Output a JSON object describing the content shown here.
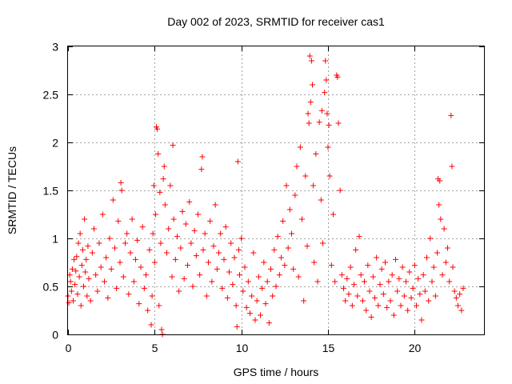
{
  "chart_data": {
    "type": "scatter",
    "title": "Day 002 of 2023, SRMTID for receiver cas1",
    "xlabel": "GPS time / hours",
    "ylabel": "SRMTID / TECUs",
    "xlim": [
      0,
      24
    ],
    "ylim": [
      0,
      3
    ],
    "xticks": [
      0,
      5,
      10,
      15,
      20
    ],
    "yticks": [
      0,
      0.5,
      1,
      1.5,
      2,
      2.5,
      3
    ],
    "xtick_labels": [
      "0",
      "5",
      "10",
      "15",
      "20"
    ],
    "ytick_labels": [
      "0",
      "0.5",
      "1",
      "1.5",
      "2",
      "2.5",
      "3"
    ],
    "grid": true,
    "marker": "+",
    "color": "#ff0000",
    "series": [
      {
        "name": "SRMTID",
        "points": [
          [
            0.0,
            0.4
          ],
          [
            0.05,
            0.33
          ],
          [
            0.1,
            0.62
          ],
          [
            0.15,
            0.55
          ],
          [
            0.2,
            0.45
          ],
          [
            0.25,
            0.68
          ],
          [
            0.3,
            0.35
          ],
          [
            0.35,
            0.78
          ],
          [
            0.4,
            0.52
          ],
          [
            0.45,
            0.66
          ],
          [
            0.5,
            0.81
          ],
          [
            0.55,
            0.42
          ],
          [
            0.6,
            0.95
          ],
          [
            0.65,
            0.6
          ],
          [
            0.7,
            1.05
          ],
          [
            0.75,
            0.3
          ],
          [
            0.8,
            0.72
          ],
          [
            0.85,
            0.88
          ],
          [
            0.9,
            0.5
          ],
          [
            0.95,
            1.2
          ],
          [
            1.0,
            0.65
          ],
          [
            1.05,
            0.78
          ],
          [
            1.1,
            0.4
          ],
          [
            1.15,
            0.92
          ],
          [
            1.2,
            0.58
          ],
          [
            1.3,
            0.35
          ],
          [
            1.4,
            0.85
          ],
          [
            1.5,
            1.1
          ],
          [
            1.6,
            0.62
          ],
          [
            1.7,
            0.45
          ],
          [
            1.8,
            0.95
          ],
          [
            1.9,
            0.7
          ],
          [
            2.0,
            1.25
          ],
          [
            2.1,
            0.55
          ],
          [
            2.2,
            0.8
          ],
          [
            2.3,
            0.38
          ],
          [
            2.4,
            1.0
          ],
          [
            2.5,
            0.68
          ],
          [
            2.6,
            1.4
          ],
          [
            2.7,
            0.9
          ],
          [
            2.8,
            0.48
          ],
          [
            2.9,
            1.18
          ],
          [
            3.0,
            0.75
          ],
          [
            3.05,
            1.58
          ],
          [
            3.1,
            1.5
          ],
          [
            3.2,
            0.6
          ],
          [
            3.3,
            0.95
          ],
          [
            3.4,
            1.05
          ],
          [
            3.5,
            0.42
          ],
          [
            3.6,
            0.85
          ],
          [
            3.7,
            1.2
          ],
          [
            3.8,
            0.55
          ],
          [
            3.9,
            0.78
          ],
          [
            4.0,
            0.98
          ],
          [
            4.1,
            0.32
          ],
          [
            4.2,
            0.7
          ],
          [
            4.3,
            1.12
          ],
          [
            4.4,
            0.48
          ],
          [
            4.5,
            0.62
          ],
          [
            4.6,
            0.25
          ],
          [
            4.7,
            0.88
          ],
          [
            4.8,
            0.1
          ],
          [
            4.85,
            0.4
          ],
          [
            4.9,
            1.05
          ],
          [
            4.95,
            1.55
          ],
          [
            5.0,
            0.75
          ],
          [
            5.05,
            1.25
          ],
          [
            5.1,
            2.16
          ],
          [
            5.15,
            2.14
          ],
          [
            5.2,
            1.88
          ],
          [
            5.25,
            0.3
          ],
          [
            5.3,
            1.48
          ],
          [
            5.35,
            0.95
          ],
          [
            5.4,
            0.05
          ],
          [
            5.45,
            0.0
          ],
          [
            5.5,
            1.62
          ],
          [
            5.55,
            1.75
          ],
          [
            5.6,
            1.35
          ],
          [
            5.7,
            0.85
          ],
          [
            5.8,
            1.1
          ],
          [
            5.9,
            1.55
          ],
          [
            6.0,
            0.6
          ],
          [
            6.05,
            1.97
          ],
          [
            6.1,
            1.2
          ],
          [
            6.2,
            0.78
          ],
          [
            6.3,
            1.02
          ],
          [
            6.4,
            0.45
          ],
          [
            6.5,
            0.9
          ],
          [
            6.6,
            1.28
          ],
          [
            6.7,
            0.58
          ],
          [
            6.8,
            1.15
          ],
          [
            6.9,
            0.72
          ],
          [
            7.0,
            1.38
          ],
          [
            7.1,
            0.95
          ],
          [
            7.2,
            0.5
          ],
          [
            7.3,
            1.08
          ],
          [
            7.4,
            0.82
          ],
          [
            7.5,
            1.25
          ],
          [
            7.6,
            0.62
          ],
          [
            7.7,
            1.72
          ],
          [
            7.75,
            1.85
          ],
          [
            7.8,
            0.88
          ],
          [
            7.9,
            1.05
          ],
          [
            8.0,
            0.4
          ],
          [
            8.1,
            0.75
          ],
          [
            8.2,
            1.18
          ],
          [
            8.3,
            0.55
          ],
          [
            8.4,
            0.92
          ],
          [
            8.5,
            1.35
          ],
          [
            8.6,
            0.68
          ],
          [
            8.7,
            0.85
          ],
          [
            8.8,
            1.05
          ],
          [
            8.9,
            0.48
          ],
          [
            9.0,
            0.78
          ],
          [
            9.1,
            1.12
          ],
          [
            9.2,
            0.38
          ],
          [
            9.3,
            0.65
          ],
          [
            9.4,
            0.95
          ],
          [
            9.5,
            0.52
          ],
          [
            9.6,
            0.8
          ],
          [
            9.7,
            0.3
          ],
          [
            9.75,
            0.08
          ],
          [
            9.8,
            1.8
          ],
          [
            9.85,
            0.88
          ],
          [
            9.9,
            0.62
          ],
          [
            10.0,
            1.0
          ],
          [
            10.1,
            0.45
          ],
          [
            10.2,
            0.7
          ],
          [
            10.3,
            0.28
          ],
          [
            10.4,
            0.55
          ],
          [
            10.5,
            0.22
          ],
          [
            10.6,
            0.4
          ],
          [
            10.7,
            0.85
          ],
          [
            10.8,
            0.15
          ],
          [
            10.9,
            0.35
          ],
          [
            11.0,
            0.6
          ],
          [
            11.1,
            0.2
          ],
          [
            11.2,
            0.48
          ],
          [
            11.3,
            0.75
          ],
          [
            11.4,
            0.32
          ],
          [
            11.5,
            0.55
          ],
          [
            11.6,
            0.12
          ],
          [
            11.7,
            0.68
          ],
          [
            11.8,
            0.4
          ],
          [
            11.9,
            0.88
          ],
          [
            12.0,
            0.5
          ],
          [
            12.1,
            1.02
          ],
          [
            12.2,
            0.62
          ],
          [
            12.3,
            0.8
          ],
          [
            12.4,
            1.18
          ],
          [
            12.5,
            0.72
          ],
          [
            12.6,
            1.55
          ],
          [
            12.7,
            0.9
          ],
          [
            12.8,
            1.3
          ],
          [
            12.9,
            1.05
          ],
          [
            13.0,
            0.68
          ],
          [
            13.1,
            1.45
          ],
          [
            13.2,
            1.75
          ],
          [
            13.3,
            0.6
          ],
          [
            13.4,
            1.95
          ],
          [
            13.5,
            1.2
          ],
          [
            13.6,
            0.35
          ],
          [
            13.7,
            1.65
          ],
          [
            13.8,
            0.92
          ],
          [
            13.85,
            2.3
          ],
          [
            13.9,
            2.2
          ],
          [
            13.95,
            2.9
          ],
          [
            14.0,
            2.42
          ],
          [
            14.05,
            2.85
          ],
          [
            14.1,
            2.6
          ],
          [
            14.15,
            1.55
          ],
          [
            14.2,
            0.75
          ],
          [
            14.3,
            1.88
          ],
          [
            14.4,
            0.55
          ],
          [
            14.5,
            2.21
          ],
          [
            14.6,
            1.4
          ],
          [
            14.65,
            2.33
          ],
          [
            14.7,
            0.95
          ],
          [
            14.8,
            2.52
          ],
          [
            14.85,
            2.85
          ],
          [
            14.9,
            2.65
          ],
          [
            14.95,
            2.3
          ],
          [
            15.0,
            1.95
          ],
          [
            15.05,
            2.18
          ],
          [
            15.1,
            1.65
          ],
          [
            15.2,
            0.72
          ],
          [
            15.3,
            1.25
          ],
          [
            15.4,
            0.55
          ],
          [
            15.5,
            2.7
          ],
          [
            15.55,
            2.68
          ],
          [
            15.6,
            2.2
          ],
          [
            15.7,
            1.5
          ],
          [
            15.8,
            0.62
          ],
          [
            15.9,
            0.48
          ],
          [
            16.0,
            0.35
          ],
          [
            16.1,
            0.58
          ],
          [
            16.2,
            0.42
          ],
          [
            16.3,
            0.7
          ],
          [
            16.4,
            0.3
          ],
          [
            16.5,
            0.52
          ],
          [
            16.6,
            0.88
          ],
          [
            16.7,
            0.4
          ],
          [
            16.8,
            1.02
          ],
          [
            16.9,
            0.62
          ],
          [
            17.0,
            0.35
          ],
          [
            17.1,
            0.55
          ],
          [
            17.2,
            0.25
          ],
          [
            17.3,
            0.72
          ],
          [
            17.4,
            0.45
          ],
          [
            17.5,
            0.18
          ],
          [
            17.6,
            0.6
          ],
          [
            17.7,
            0.38
          ],
          [
            17.8,
            0.8
          ],
          [
            17.9,
            0.3
          ],
          [
            18.0,
            0.52
          ],
          [
            18.1,
            0.68
          ],
          [
            18.2,
            0.42
          ],
          [
            18.3,
            0.75
          ],
          [
            18.4,
            0.28
          ],
          [
            18.5,
            0.55
          ],
          [
            18.6,
            0.35
          ],
          [
            18.7,
            0.62
          ],
          [
            18.8,
            0.2
          ],
          [
            18.9,
            0.78
          ],
          [
            19.0,
            0.45
          ],
          [
            19.1,
            0.58
          ],
          [
            19.2,
            0.3
          ],
          [
            19.3,
            0.7
          ],
          [
            19.4,
            0.4
          ],
          [
            19.5,
            0.55
          ],
          [
            19.6,
            0.25
          ],
          [
            19.7,
            0.65
          ],
          [
            19.8,
            0.38
          ],
          [
            19.9,
            0.48
          ],
          [
            20.0,
            0.72
          ],
          [
            20.1,
            0.3
          ],
          [
            20.2,
            0.58
          ],
          [
            20.3,
            0.42
          ],
          [
            20.4,
            0.15
          ],
          [
            20.5,
            0.62
          ],
          [
            20.6,
            0.45
          ],
          [
            20.7,
            0.8
          ],
          [
            20.8,
            0.35
          ],
          [
            20.9,
            1.0
          ],
          [
            21.0,
            0.55
          ],
          [
            21.1,
            0.7
          ],
          [
            21.2,
            0.4
          ],
          [
            21.3,
            0.85
          ],
          [
            21.35,
            1.62
          ],
          [
            21.4,
            1.35
          ],
          [
            21.45,
            1.6
          ],
          [
            21.5,
            1.2
          ],
          [
            21.6,
            0.62
          ],
          [
            21.7,
            1.1
          ],
          [
            21.8,
            0.75
          ],
          [
            21.9,
            0.9
          ],
          [
            22.0,
            0.55
          ],
          [
            22.1,
            2.28
          ],
          [
            22.15,
            1.75
          ],
          [
            22.2,
            0.7
          ],
          [
            22.3,
            0.45
          ],
          [
            22.4,
            0.38
          ],
          [
            22.5,
            0.3
          ],
          [
            22.6,
            0.42
          ],
          [
            22.7,
            0.25
          ],
          [
            22.8,
            0.48
          ]
        ]
      }
    ]
  }
}
